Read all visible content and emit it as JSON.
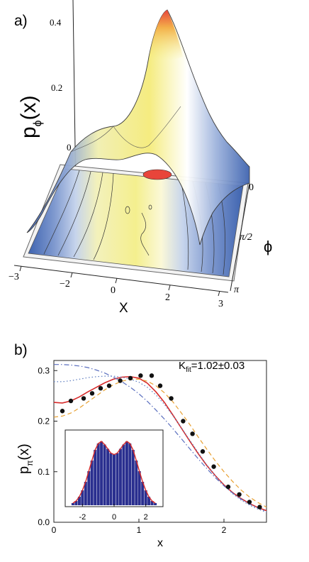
{
  "panels": {
    "a_label": "a)",
    "b_label": "b)"
  },
  "panel_a": {
    "zlabel_main": "p",
    "zlabel_sub": "ϕ",
    "zlabel_tail": "(x)",
    "z_ticks": [
      "0.4",
      "0.2",
      "0"
    ],
    "x_ticks": [
      "−3",
      "−2",
      "0",
      "2",
      "3"
    ],
    "xlabel": "X",
    "phi_ticks": [
      "0",
      "π/2",
      "π"
    ],
    "philabel": "ϕ",
    "colors": {
      "peak": "#e8453a",
      "high": "#f3d36a",
      "mid": "#f4f2b8",
      "low": "#ffffff",
      "tail": "#4a6fb8"
    }
  },
  "panel_b": {
    "annotation_main": "K",
    "annotation_sub": "fit",
    "annotation_tail": "=1.02±0.03",
    "ylabel_main": "p",
    "ylabel_sub": "π",
    "ylabel_tail": "(x)",
    "xlabel": "x",
    "inset_x_ticks": [
      "-2",
      "0",
      "2"
    ]
  },
  "chart_data": {
    "type": "line",
    "xlabel": "x",
    "ylabel": "pπ(x)",
    "annotation": "Kfit=1.02±0.03",
    "xlim": [
      0,
      2.5
    ],
    "ylim": [
      0,
      0.32
    ],
    "x_ticks": [
      "0",
      "1",
      "2"
    ],
    "y_ticks": [
      "0.0",
      "0.1",
      "0.2",
      "0.3"
    ],
    "series": [
      {
        "style": "points",
        "color": "#111111",
        "x": [
          0.1,
          0.2,
          0.35,
          0.45,
          0.55,
          0.65,
          0.78,
          0.9,
          1.02,
          1.15,
          1.25,
          1.38,
          1.52,
          1.63,
          1.75,
          1.88,
          2.05,
          2.18,
          2.3,
          2.42
        ],
        "y": [
          0.22,
          0.24,
          0.245,
          0.255,
          0.265,
          0.27,
          0.28,
          0.285,
          0.29,
          0.29,
          0.27,
          0.245,
          0.2,
          0.175,
          0.14,
          0.11,
          0.07,
          0.055,
          0.04,
          0.03
        ]
      },
      {
        "style": "solid",
        "color": "#d62a2a",
        "x": [
          0,
          0.1,
          0.2,
          0.3,
          0.4,
          0.5,
          0.6,
          0.7,
          0.8,
          0.9,
          1.0,
          1.1,
          1.2,
          1.3,
          1.4,
          1.5,
          1.6,
          1.7,
          1.8,
          1.9,
          2.0,
          2.1,
          2.2,
          2.3,
          2.4,
          2.5
        ],
        "y": [
          0.237,
          0.236,
          0.24,
          0.248,
          0.258,
          0.267,
          0.276,
          0.283,
          0.287,
          0.288,
          0.285,
          0.275,
          0.258,
          0.237,
          0.212,
          0.186,
          0.16,
          0.135,
          0.112,
          0.092,
          0.074,
          0.059,
          0.047,
          0.037,
          0.029,
          0.023
        ]
      },
      {
        "style": "dashed",
        "color": "#e8a030",
        "x": [
          0,
          0.1,
          0.2,
          0.3,
          0.4,
          0.5,
          0.6,
          0.7,
          0.8,
          0.9,
          1.0,
          1.1,
          1.2,
          1.3,
          1.4,
          1.5,
          1.6,
          1.7,
          1.8,
          1.9,
          2.0,
          2.1,
          2.2,
          2.3,
          2.4,
          2.5
        ],
        "y": [
          0.208,
          0.21,
          0.216,
          0.226,
          0.238,
          0.25,
          0.262,
          0.272,
          0.279,
          0.283,
          0.283,
          0.279,
          0.27,
          0.256,
          0.238,
          0.216,
          0.193,
          0.168,
          0.144,
          0.121,
          0.1,
          0.081,
          0.064,
          0.05,
          0.039,
          0.03
        ]
      },
      {
        "style": "dotted",
        "color": "#5b7bbf",
        "x": [
          0,
          0.1,
          0.2,
          0.3,
          0.4,
          0.5,
          0.6,
          0.7,
          0.8,
          0.9,
          1.0,
          1.1,
          1.2,
          1.3,
          1.4,
          1.5,
          1.6,
          1.7,
          1.8,
          1.9,
          2.0,
          2.1,
          2.2,
          2.3,
          2.4,
          2.5
        ],
        "y": [
          0.278,
          0.278,
          0.28,
          0.283,
          0.286,
          0.288,
          0.289,
          0.289,
          0.287,
          0.283,
          0.277,
          0.267,
          0.252,
          0.233,
          0.211,
          0.187,
          0.162,
          0.137,
          0.113,
          0.092,
          0.073,
          0.057,
          0.044,
          0.034,
          0.026,
          0.02
        ]
      },
      {
        "style": "dashdot",
        "color": "#5b6fbf",
        "x": [
          0,
          0.1,
          0.2,
          0.3,
          0.4,
          0.5,
          0.6,
          0.7,
          0.8,
          0.9,
          1.0,
          1.1,
          1.2,
          1.3,
          1.4,
          1.5,
          1.6,
          1.7,
          1.8,
          1.9,
          2.0,
          2.1,
          2.2,
          2.3,
          2.4,
          2.5
        ],
        "y": [
          0.312,
          0.312,
          0.311,
          0.309,
          0.306,
          0.301,
          0.295,
          0.287,
          0.278,
          0.267,
          0.254,
          0.239,
          0.222,
          0.204,
          0.185,
          0.165,
          0.145,
          0.125,
          0.106,
          0.088,
          0.072,
          0.058,
          0.046,
          0.036,
          0.028,
          0.021
        ]
      }
    ],
    "inset": {
      "type": "bar",
      "xlim": [
        -3,
        3
      ],
      "x_ticks": [
        "-2",
        "0",
        "2"
      ],
      "color": "#2a2f8f",
      "fit_color": "#d62a2a",
      "x": [
        -2.6,
        -2.4,
        -2.2,
        -2.0,
        -1.8,
        -1.6,
        -1.4,
        -1.2,
        -1.0,
        -0.8,
        -0.6,
        -0.4,
        -0.2,
        0.0,
        0.2,
        0.4,
        0.6,
        0.8,
        1.0,
        1.2,
        1.4,
        1.6,
        1.8,
        2.0,
        2.2,
        2.4,
        2.6
      ],
      "values": [
        0.01,
        0.02,
        0.04,
        0.07,
        0.11,
        0.16,
        0.21,
        0.26,
        0.29,
        0.3,
        0.285,
        0.265,
        0.245,
        0.238,
        0.245,
        0.265,
        0.285,
        0.3,
        0.29,
        0.26,
        0.21,
        0.16,
        0.11,
        0.07,
        0.04,
        0.02,
        0.01
      ]
    }
  }
}
